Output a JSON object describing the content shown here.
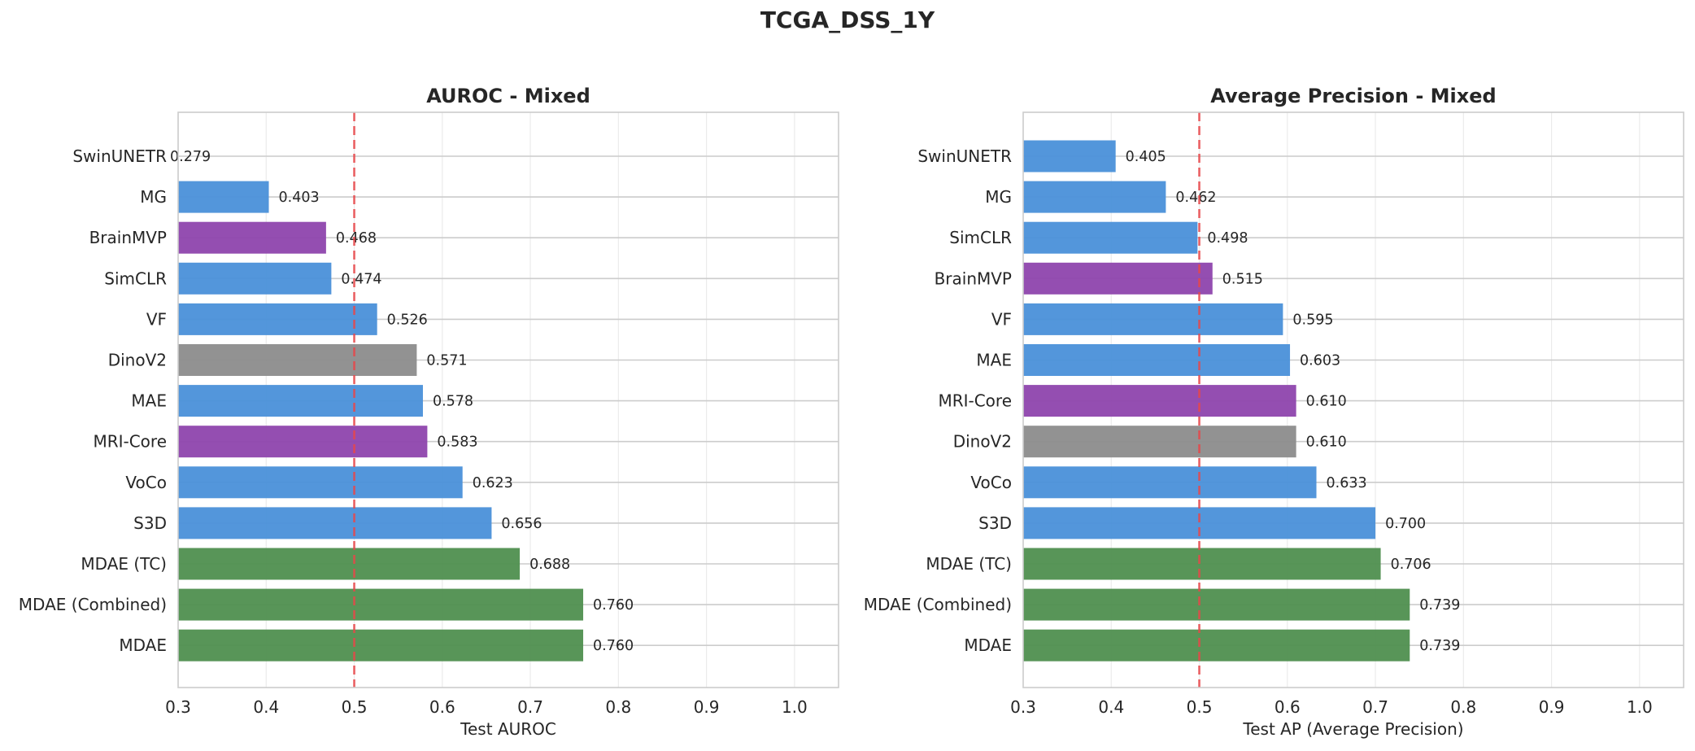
{
  "figure": {
    "title": "TCGA_DSS_1Y"
  },
  "colors": {
    "blue": "#4a90d9",
    "purple": "#8e44ad",
    "gray": "#8c8c8c",
    "green": "#4f8f4f",
    "reference_line": "#e8474a"
  },
  "chart_data": [
    {
      "type": "bar",
      "orientation": "horizontal",
      "title": "AUROC - Mixed",
      "xlabel": "Test AUROC",
      "ylabel": "",
      "xlim": [
        0.3,
        1.05
      ],
      "xticks": [
        "0.3",
        "0.4",
        "0.5",
        "0.6",
        "0.7",
        "0.8",
        "0.9",
        "1.0"
      ],
      "xtick_values": [
        0.3,
        0.4,
        0.5,
        0.6,
        0.7,
        0.8,
        0.9,
        1.0
      ],
      "reference_line": 0.5,
      "grid": true,
      "categories": [
        "SwinUNETR",
        "MG",
        "BrainMVP",
        "SimCLR",
        "VF",
        "DinoV2",
        "MAE",
        "MRI-Core",
        "VoCo",
        "S3D",
        "MDAE (TC)",
        "MDAE (Combined)",
        "MDAE"
      ],
      "values": [
        0.279,
        0.403,
        0.468,
        0.474,
        0.526,
        0.571,
        0.578,
        0.583,
        0.623,
        0.656,
        0.688,
        0.76,
        0.76
      ],
      "labels": [
        "0.279",
        "0.403",
        "0.468",
        "0.474",
        "0.526",
        "0.571",
        "0.578",
        "0.583",
        "0.623",
        "0.656",
        "0.688",
        "0.760",
        "0.760"
      ],
      "bar_colors": [
        "blue",
        "blue",
        "purple",
        "blue",
        "blue",
        "gray",
        "blue",
        "purple",
        "blue",
        "blue",
        "green",
        "green",
        "green"
      ]
    },
    {
      "type": "bar",
      "orientation": "horizontal",
      "title": "Average Precision - Mixed",
      "xlabel": "Test AP (Average Precision)",
      "ylabel": "",
      "xlim": [
        0.3,
        1.05
      ],
      "xticks": [
        "0.3",
        "0.4",
        "0.5",
        "0.6",
        "0.7",
        "0.8",
        "0.9",
        "1.0"
      ],
      "xtick_values": [
        0.3,
        0.4,
        0.5,
        0.6,
        0.7,
        0.8,
        0.9,
        1.0
      ],
      "reference_line": 0.5,
      "grid": true,
      "categories": [
        "SwinUNETR",
        "MG",
        "SimCLR",
        "BrainMVP",
        "VF",
        "MAE",
        "MRI-Core",
        "DinoV2",
        "VoCo",
        "S3D",
        "MDAE (TC)",
        "MDAE (Combined)",
        "MDAE"
      ],
      "values": [
        0.405,
        0.462,
        0.498,
        0.515,
        0.595,
        0.603,
        0.61,
        0.61,
        0.633,
        0.7,
        0.706,
        0.739,
        0.739
      ],
      "labels": [
        "0.405",
        "0.462",
        "0.498",
        "0.515",
        "0.595",
        "0.603",
        "0.610",
        "0.610",
        "0.633",
        "0.700",
        "0.706",
        "0.739",
        "0.739"
      ],
      "bar_colors": [
        "blue",
        "blue",
        "blue",
        "purple",
        "blue",
        "blue",
        "purple",
        "gray",
        "blue",
        "blue",
        "green",
        "green",
        "green"
      ]
    }
  ]
}
